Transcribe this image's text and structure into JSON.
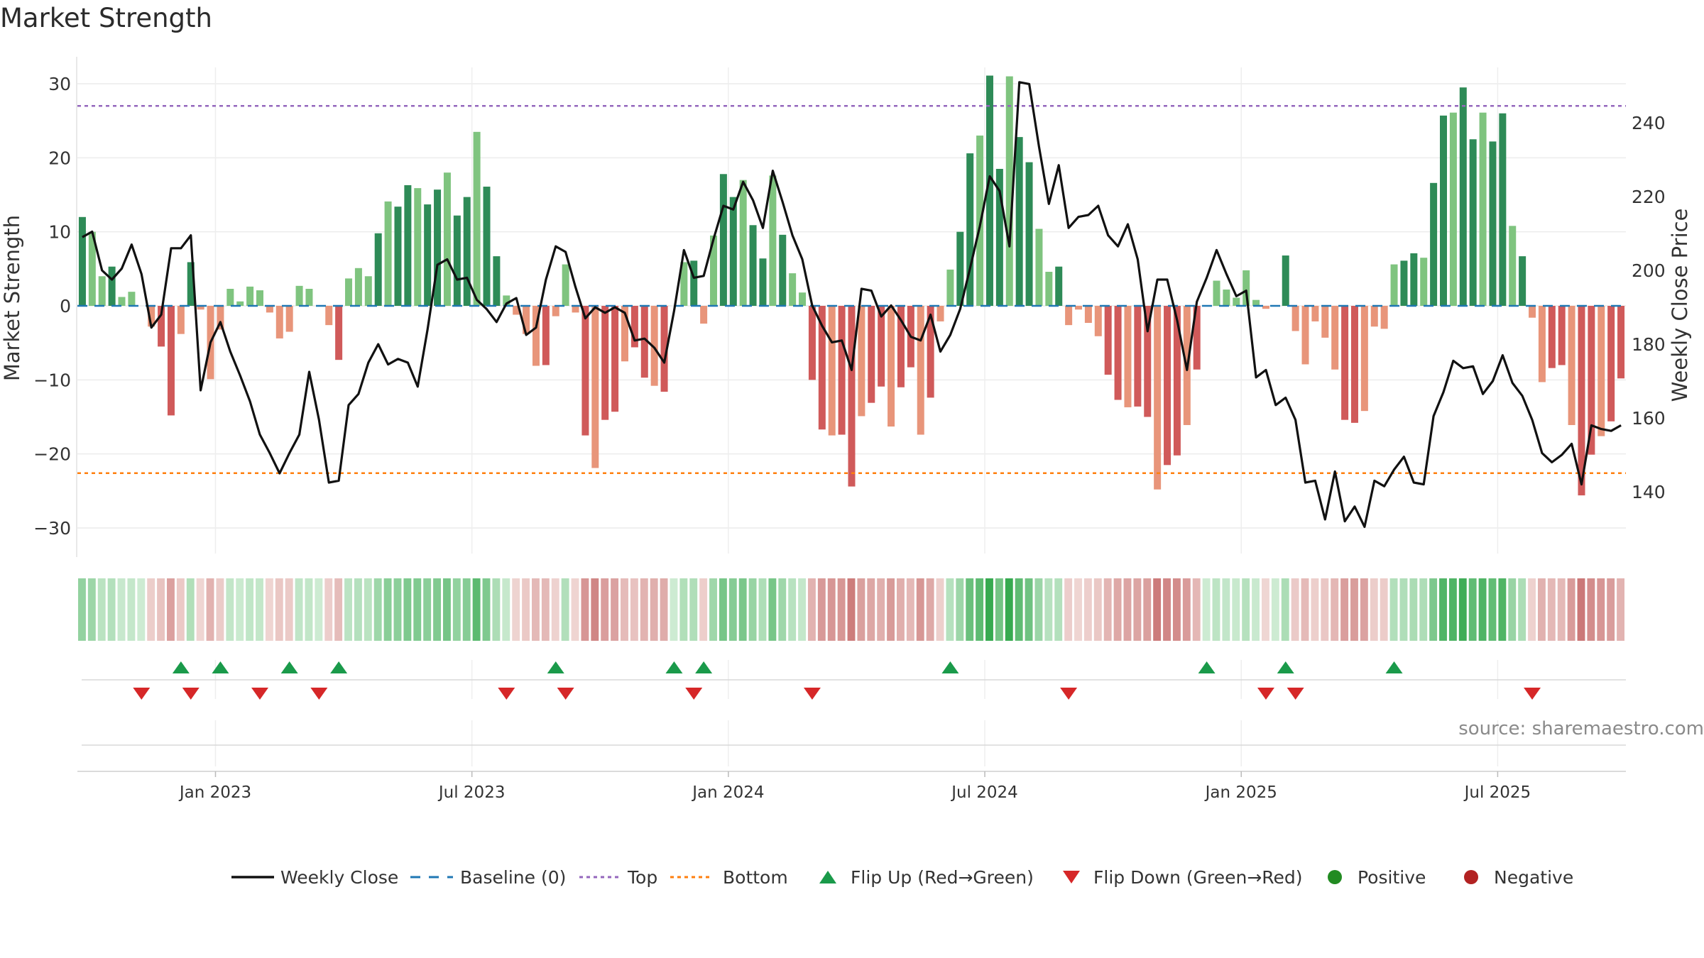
{
  "chart_data": {
    "type": "bar",
    "title": "Market Strength",
    "ylabel": "Market Strength",
    "y2label": "Weekly Close Price",
    "ylim": [
      -33,
      33
    ],
    "y2lim": [
      127,
      257
    ],
    "yticks": [
      "30",
      "20",
      "10",
      "0",
      "−10",
      "−20",
      "−30"
    ],
    "ytick_values": [
      30,
      20,
      10,
      0,
      -10,
      -20,
      -30
    ],
    "y2ticks": [
      "240",
      "220",
      "200",
      "180",
      "160",
      "140"
    ],
    "y2tick_values": [
      240,
      220,
      200,
      180,
      160,
      140
    ],
    "xticks": [
      "Jan 2023",
      "Jul 2023",
      "Jan 2024",
      "Jul 2024",
      "Jan 2025",
      "Jul 2025"
    ],
    "xtick_weeks": [
      14,
      40,
      66,
      92,
      118,
      144
    ],
    "top_line": 27,
    "bottom_line": -22.6,
    "baseline": 0,
    "grid": true,
    "colors": {
      "pos_strong": "#2e8b57",
      "pos_weak": "#7fc47f",
      "neg_strong": "#d05a5a",
      "neg_weak": "#e8957a",
      "close": "#111111",
      "baseline": "#1f77b4",
      "top": "#9467bd",
      "bottom": "#ff7f0e",
      "flip_up": "#1a9a4a",
      "flip_down": "#d62728",
      "positive": "#228b22",
      "negative": "#b22222"
    },
    "strength": [
      12,
      10,
      4,
      5.3,
      1.2,
      1.9,
      0,
      -2.8,
      -5.5,
      -14.8,
      -3.8,
      5.9,
      -0.5,
      -9.9,
      -3.2,
      2.3,
      0.6,
      2.6,
      2.1,
      -0.9,
      -4.4,
      -3.5,
      2.7,
      2.3,
      0,
      -2.6,
      -7.3,
      3.7,
      5.1,
      4,
      9.8,
      14.1,
      13.4,
      16.3,
      15.9,
      13.7,
      15.7,
      18,
      12.2,
      14.7,
      23.5,
      16.1,
      6.7,
      1.4,
      -1.2,
      -3.8,
      -8.1,
      -8,
      -1.4,
      5.6,
      -0.9,
      -17.5,
      -21.9,
      -15.4,
      -14.3,
      -7.5,
      -5.6,
      -9.7,
      -10.8,
      -11.6,
      0,
      5.9,
      6.1,
      -2.4,
      9.5,
      17.8,
      14.7,
      17,
      10.9,
      6.4,
      17.6,
      9.6,
      4.4,
      1.8,
      -10,
      -16.7,
      -17.5,
      -17.4,
      -24.4,
      -14.9,
      -13.1,
      -10.9,
      -16.3,
      -11,
      -8.3,
      -17.4,
      -12.4,
      -2.1,
      4.9,
      10,
      20.6,
      23,
      31.1,
      18.5,
      31,
      22.8,
      19.4,
      10.4,
      4.6,
      5.3,
      -2.6,
      -0.5,
      -2.3,
      -4.1,
      -9.3,
      -12.7,
      -13.7,
      -13.6,
      -15,
      -24.8,
      -21.5,
      -20.2,
      -16.1,
      -8.6,
      0,
      3.4,
      2.2,
      1.1,
      4.8,
      0.8,
      -0.4,
      0,
      6.8,
      -3.4,
      -7.9,
      -2.1,
      -4.3,
      -8.6,
      -15.4,
      -15.8,
      -14.2,
      -2.8,
      -3.1,
      5.6,
      6.1,
      7.1,
      6.5,
      16.6,
      25.7,
      26.1,
      29.5,
      22.5,
      26.1,
      22.2,
      26,
      10.8,
      6.7,
      -1.6,
      -10.3,
      -8.4,
      -8,
      -16.1,
      -25.6,
      -20.1,
      -17.6,
      -15.6,
      -9.8
    ],
    "weekly_close": [
      209,
      210.5,
      200,
      197.5,
      200.5,
      207,
      199,
      184.5,
      188,
      206,
      206,
      209.5,
      167.5,
      180.5,
      186,
      178,
      171.5,
      164.5,
      155.5,
      150.5,
      145,
      150.5,
      155.5,
      172.5,
      159.5,
      142.5,
      143,
      163.5,
      166.5,
      175,
      180,
      174.5,
      176,
      175,
      168.5,
      184,
      201.5,
      203,
      197.5,
      198,
      192,
      189.5,
      186,
      191,
      192.5,
      182.5,
      184.5,
      197.5,
      206.5,
      205,
      195.5,
      187,
      190,
      188.5,
      190,
      188.5,
      181,
      181.5,
      179,
      175,
      189,
      205.5,
      198,
      198.5,
      208.5,
      217.5,
      216.5,
      224,
      219,
      211.5,
      227,
      218.5,
      209.5,
      203,
      190.5,
      185,
      180.5,
      181,
      173,
      195,
      194.5,
      187.5,
      190.5,
      186.5,
      182,
      181,
      188,
      178,
      182.5,
      189.5,
      200.5,
      212,
      225.5,
      221.5,
      206.5,
      251,
      250.5,
      233.5,
      218,
      228.5,
      211.5,
      214.5,
      215,
      217.5,
      209.5,
      206.5,
      212.5,
      203,
      183.5,
      197.5,
      197.5,
      186.5,
      173,
      191.5,
      198,
      205.5,
      199,
      193,
      194.5,
      171,
      173,
      163.5,
      165.5,
      159.5,
      142.5,
      143,
      132.5,
      145.5,
      132,
      136,
      130.5,
      143,
      141.5,
      146,
      149.5,
      142.5,
      142,
      160.5,
      167,
      175.5,
      173.5,
      174,
      166.5,
      170,
      177,
      169.5,
      166,
      159.5,
      150.5,
      148,
      150,
      153,
      142,
      158,
      157,
      156.5,
      158
    ],
    "flip_up_weeks": [
      10,
      14,
      21,
      26,
      48,
      60,
      63,
      88,
      114,
      122,
      133
    ],
    "flip_down_weeks": [
      6,
      11,
      18,
      24,
      43,
      49,
      62,
      74,
      100,
      120,
      123,
      147
    ]
  },
  "source": "source: sharemaestro.com",
  "legend": [
    {
      "label": "Weekly Close",
      "kind": "solid-line",
      "color": "#111111"
    },
    {
      "label": "Baseline (0)",
      "kind": "dashed-line",
      "color": "#1f77b4"
    },
    {
      "label": "Top",
      "kind": "dotted-line",
      "color": "#9467bd"
    },
    {
      "label": "Bottom",
      "kind": "dotted-line",
      "color": "#ff7f0e"
    },
    {
      "label": "Flip Up (Red→Green)",
      "kind": "triangle-up",
      "color": "#1a9a4a"
    },
    {
      "label": "Flip Down (Green→Red)",
      "kind": "triangle-down",
      "color": "#d62728"
    },
    {
      "label": "Positive",
      "kind": "circle",
      "color": "#228b22"
    },
    {
      "label": "Negative",
      "kind": "circle",
      "color": "#b22222"
    }
  ]
}
